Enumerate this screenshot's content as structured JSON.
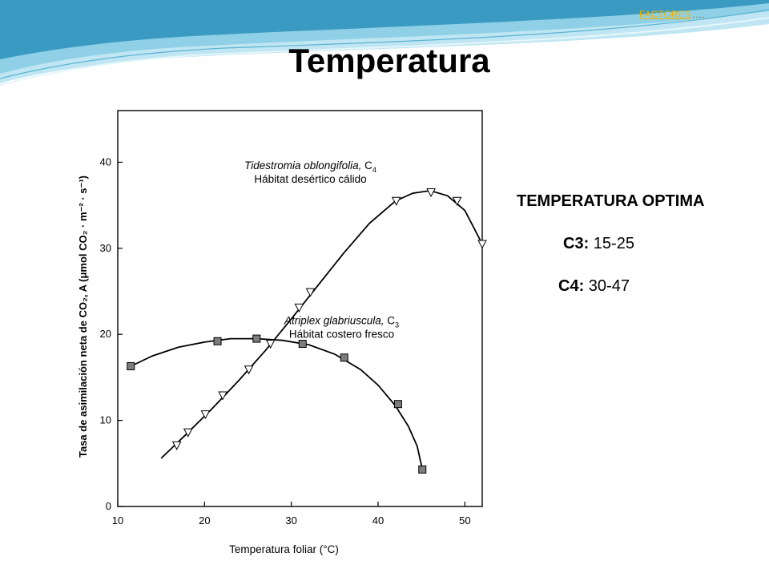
{
  "header": {
    "link_text": "FACTORES",
    "link_suffix": "….",
    "title": "Temperatura"
  },
  "info": {
    "heading": "TEMPERATURA OPTIMA",
    "c3_label": "C3:",
    "c3_value": " 15-25",
    "c4_label": "C4:",
    "c4_value": " 30-47"
  },
  "colors": {
    "link": "#f0b400",
    "wave_dark": "#2f8fb8",
    "wave_light": "#a6dced"
  },
  "chart_data": {
    "type": "line",
    "xlabel": "Temperatura foliar (°C)",
    "ylabel": "Tasa de asimilación neta de CO₂, A (μmol CO₂ · m⁻² · s⁻¹)",
    "xlim": [
      10,
      52
    ],
    "ylim": [
      0,
      46
    ],
    "xticks": [
      10,
      20,
      30,
      40,
      50
    ],
    "yticks": [
      0,
      10,
      20,
      30,
      40
    ],
    "grid": false,
    "series": [
      {
        "name": "Tidestromia oblongifolia, C₄",
        "habitat": "Hábitat desértico cálido",
        "marker": "triangle-down",
        "points": [
          [
            16.8,
            7.1
          ],
          [
            18.1,
            8.6
          ],
          [
            20.1,
            10.7
          ],
          [
            22.1,
            12.9
          ],
          [
            25.1,
            15.9
          ],
          [
            27.6,
            18.9
          ],
          [
            30.9,
            23.1
          ],
          [
            32.2,
            24.9
          ],
          [
            42.1,
            35.5
          ],
          [
            46.1,
            36.5
          ],
          [
            49.1,
            35.5
          ],
          [
            52.0,
            30.5
          ]
        ],
        "curve": [
          [
            15,
            5.6
          ],
          [
            18,
            8.5
          ],
          [
            21,
            11.5
          ],
          [
            24,
            14.7
          ],
          [
            27,
            18.1
          ],
          [
            30,
            21.8
          ],
          [
            33,
            25.6
          ],
          [
            36,
            29.4
          ],
          [
            39,
            32.9
          ],
          [
            42,
            35.5
          ],
          [
            44,
            36.4
          ],
          [
            46,
            36.7
          ],
          [
            48,
            36.1
          ],
          [
            50,
            34.4
          ],
          [
            52,
            30.5
          ]
        ]
      },
      {
        "name": "Atriplex glabriuscula, C₃",
        "habitat": "Hábitat costero fresco",
        "marker": "square",
        "points": [
          [
            11.5,
            16.3
          ],
          [
            21.5,
            19.2
          ],
          [
            26.0,
            19.5
          ],
          [
            31.3,
            18.9
          ],
          [
            36.1,
            17.3
          ],
          [
            42.3,
            11.9
          ],
          [
            45.1,
            4.3
          ]
        ],
        "curve": [
          [
            11.5,
            16.3
          ],
          [
            14,
            17.5
          ],
          [
            17,
            18.5
          ],
          [
            20,
            19.1
          ],
          [
            23,
            19.5
          ],
          [
            26,
            19.5
          ],
          [
            29,
            19.3
          ],
          [
            32,
            18.8
          ],
          [
            35,
            17.7
          ],
          [
            38,
            15.9
          ],
          [
            40,
            14.1
          ],
          [
            42,
            11.7
          ],
          [
            43.5,
            9.3
          ],
          [
            44.5,
            7.0
          ],
          [
            45.1,
            4.3
          ]
        ]
      }
    ],
    "annotations": [
      {
        "text_italic": "Tidestromia oblongifolia,",
        "text_plain": " C",
        "subscript": "4",
        "line2": "Hábitat desértico cálido",
        "x": 32.2,
        "y": 39.2
      },
      {
        "text_italic": "Atriplex glabriuscula,",
        "text_plain": " C",
        "subscript": "3",
        "line2": "Hábitat costero fresco",
        "x": 35.8,
        "y": 21.2
      }
    ]
  }
}
